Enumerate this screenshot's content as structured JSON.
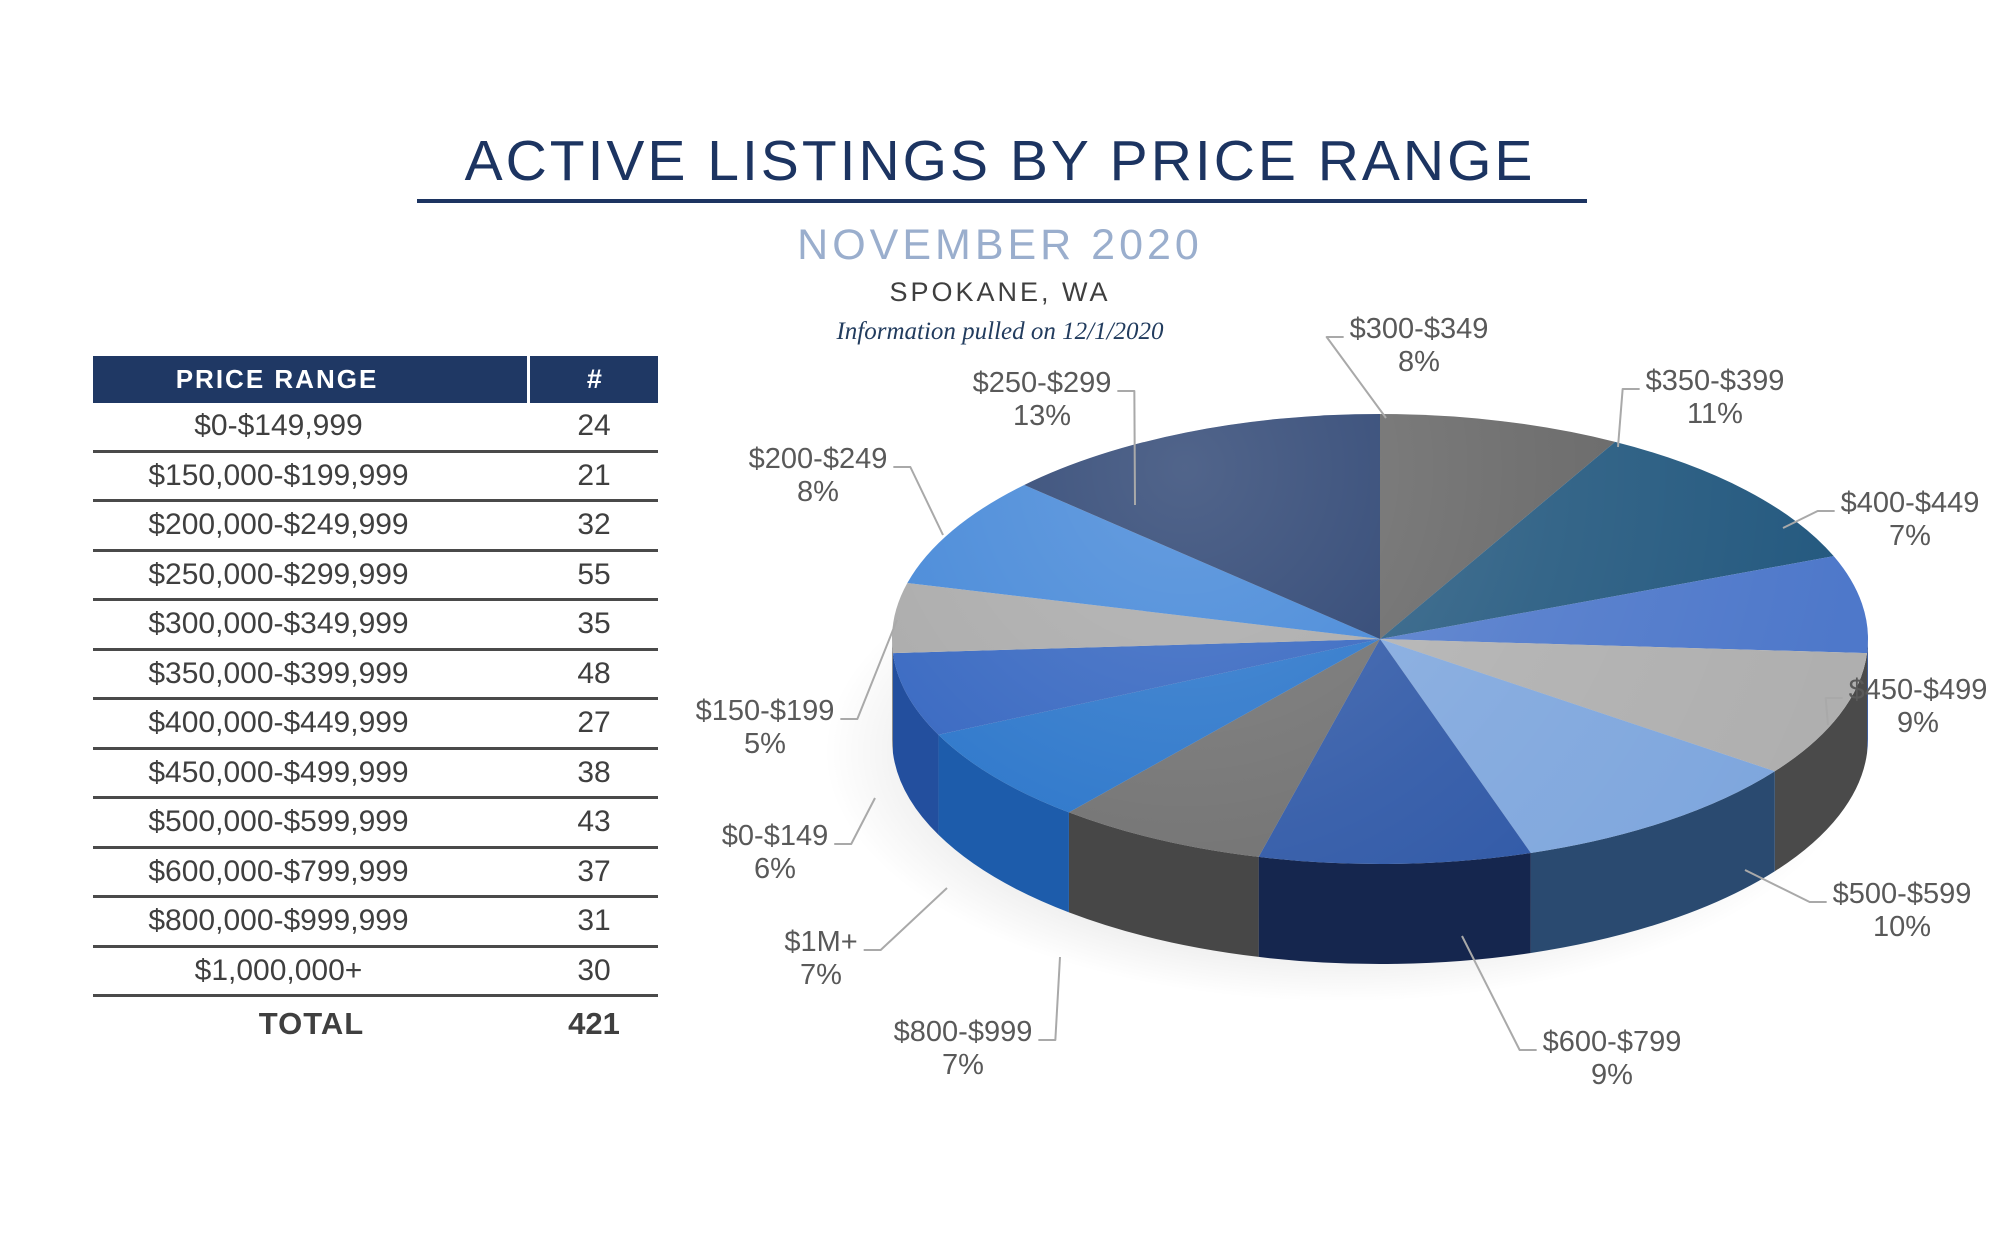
{
  "header": {
    "title": "ACTIVE LISTINGS BY PRICE RANGE",
    "subtitle": "NOVEMBER 2020",
    "location": "SPOKANE, WA",
    "note": "Information pulled on 12/1/2020"
  },
  "table": {
    "col1": "PRICE RANGE",
    "col2": "#",
    "rows": [
      {
        "range": "$0-$149,999",
        "count": "24"
      },
      {
        "range": "$150,000-$199,999",
        "count": "21"
      },
      {
        "range": "$200,000-$249,999",
        "count": "32"
      },
      {
        "range": "$250,000-$299,999",
        "count": "55"
      },
      {
        "range": "$300,000-$349,999",
        "count": "35"
      },
      {
        "range": "$350,000-$399,999",
        "count": "48"
      },
      {
        "range": "$400,000-$449,999",
        "count": "27"
      },
      {
        "range": "$450,000-$499,999",
        "count": "38"
      },
      {
        "range": "$500,000-$599,999",
        "count": "43"
      },
      {
        "range": "$600,000-$799,999",
        "count": "37"
      },
      {
        "range": "$800,000-$999,999",
        "count": "31"
      },
      {
        "range": "$1,000,000+",
        "count": "30"
      }
    ],
    "total_label": "TOTAL",
    "total_value": "421"
  },
  "chart_data": {
    "type": "pie",
    "title": "Active listings by price range, November 2020, Spokane WA",
    "unit": "percent of 421 active listings",
    "start_angle_deg": -90,
    "direction": "clockwise",
    "legend_position": "outside-labels",
    "slices": [
      {
        "label": "$300-$349",
        "pct": 8,
        "count": 35,
        "color": "#646464",
        "side_color": "#4b4b4b"
      },
      {
        "label": "$350-$399",
        "pct": 11,
        "count": 48,
        "color": "#24597f",
        "side_color": "#1a3f5c"
      },
      {
        "label": "$400-$449",
        "pct": 7,
        "count": 27,
        "color": "#4e78ca",
        "side_color": "#3a5a9a"
      },
      {
        "label": "$450-$499",
        "pct": 9,
        "count": 38,
        "color": "#afafaf",
        "side_color": "#4a4a4a"
      },
      {
        "label": "$500-$599",
        "pct": 10,
        "count": 43,
        "color": "#7ea6dd",
        "side_color": "#2a4a70"
      },
      {
        "label": "$600-$799",
        "pct": 9,
        "count": 37,
        "color": "#2b55a5",
        "side_color": "#15264e"
      },
      {
        "label": "$800-$999",
        "pct": 7,
        "count": 31,
        "color": "#6c6c6c",
        "side_color": "#474747"
      },
      {
        "label": "$1M+",
        "pct": 7,
        "count": 30,
        "color": "#2270c8",
        "side_color": "#1d5cab"
      },
      {
        "label": "$0-$149",
        "pct": 6,
        "count": 24,
        "color": "#2d60be",
        "side_color": "#234f9e"
      },
      {
        "label": "$150-$199",
        "pct": 5,
        "count": 21,
        "color": "#a6a6a6",
        "side_color": "#8a8a8a"
      },
      {
        "label": "$200-$249",
        "pct": 8,
        "count": 32,
        "color": "#3c82d6",
        "side_color": "#2f6ab2"
      },
      {
        "label": "$250-$299",
        "pct": 13,
        "count": 55,
        "color": "#20396a",
        "side_color": "#16294e"
      }
    ]
  }
}
